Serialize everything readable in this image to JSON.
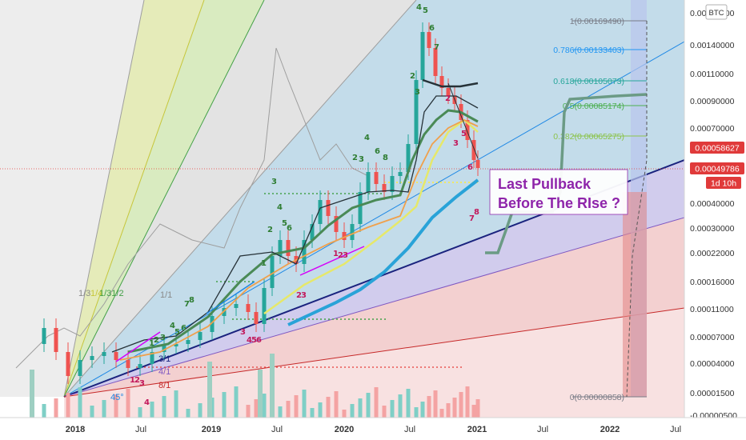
{
  "chart_data": {
    "type": "candlestick",
    "title": "",
    "symbol": "BTC",
    "x_axis": {
      "tick_labels": [
        "2018",
        "Jul",
        "2019",
        "Jul",
        "2020",
        "Jul",
        "2021",
        "Jul",
        "2022",
        "Jul"
      ]
    },
    "y_axis": {
      "scale": "log",
      "position": "right",
      "tick_labels": [
        "0.00170000",
        "0.00140000",
        "0.00110000",
        "0.00090000",
        "0.00070000",
        "0.00040000",
        "0.00030000",
        "0.00022000",
        "0.00016000",
        "0.00011000",
        "0.00007000",
        "0.00004000",
        "0.00001500",
        "-0.00000500"
      ]
    },
    "price_badges": [
      {
        "value": "0.00058627",
        "color": "#e03a3a"
      },
      {
        "value": "0.00049786",
        "color": "#e03a3a"
      },
      {
        "value": "1d 10h",
        "color": "#e03a3a"
      }
    ],
    "fib_levels": [
      {
        "ratio": 1,
        "label": "1(0.00169490)",
        "color": "#787b86"
      },
      {
        "ratio": 0.786,
        "label": "0.786(0.00133403)",
        "color": "#2196f3"
      },
      {
        "ratio": 0.618,
        "label": "0.618(0.00105073)",
        "color": "#26a69a"
      },
      {
        "ratio": 0.5,
        "label": "0.5(0.00085174)",
        "color": "#4caf50"
      },
      {
        "ratio": 0.382,
        "label": "0.382(0.00065275)",
        "color": "#8bc34a"
      },
      {
        "ratio": 0,
        "label": "0(0.00000858)",
        "color": "#787b86"
      }
    ],
    "fan_labels": [
      "1/3",
      "1/4",
      "1/31/2",
      "1/1",
      "45°",
      "4/1",
      "8/1",
      "3/1"
    ],
    "sequence_labels": [
      "4",
      "5",
      "6",
      "7",
      "8",
      "2",
      "1",
      "3"
    ],
    "annotation": {
      "lines": [
        "Last Pullback",
        "Before The RIse ?"
      ],
      "color": "#8e24aa"
    },
    "colors": {
      "up_candle": "#26a69a",
      "down_candle": "#ef5350",
      "trendline": "#1a237e",
      "ma_blue": "#1e88e5",
      "ma_yellow": "#e6e86a",
      "ma_orange": "#f0a04b",
      "ma_green": "#4a8a56",
      "projection": "#6b9b85"
    },
    "price_series": {
      "description_free": true,
      "points_approx": [
        [
          0.0,
          4e-05
        ],
        [
          0.05,
          7e-05
        ],
        [
          0.1,
          4e-05
        ],
        [
          0.2,
          4e-05
        ],
        [
          0.3,
          5e-05
        ],
        [
          0.4,
          7e-05
        ],
        [
          0.5,
          0.00011
        ],
        [
          0.6,
          0.00015
        ],
        [
          0.7,
          0.0003
        ],
        [
          0.8,
          0.00025
        ],
        [
          0.9,
          0.00022
        ],
        [
          1.0,
          0.0003
        ],
        [
          1.1,
          0.00038
        ],
        [
          1.2,
          0.00025
        ],
        [
          1.3,
          0.00032
        ],
        [
          1.4,
          0.00045
        ],
        [
          1.5,
          0.00065
        ],
        [
          1.6,
          0.0011
        ],
        [
          1.7,
          0.0017
        ],
        [
          1.75,
          0.0013
        ],
        [
          1.85,
          0.0009
        ],
        [
          1.95,
          0.0007
        ],
        [
          2.0,
          0.0005
        ]
      ]
    }
  }
}
